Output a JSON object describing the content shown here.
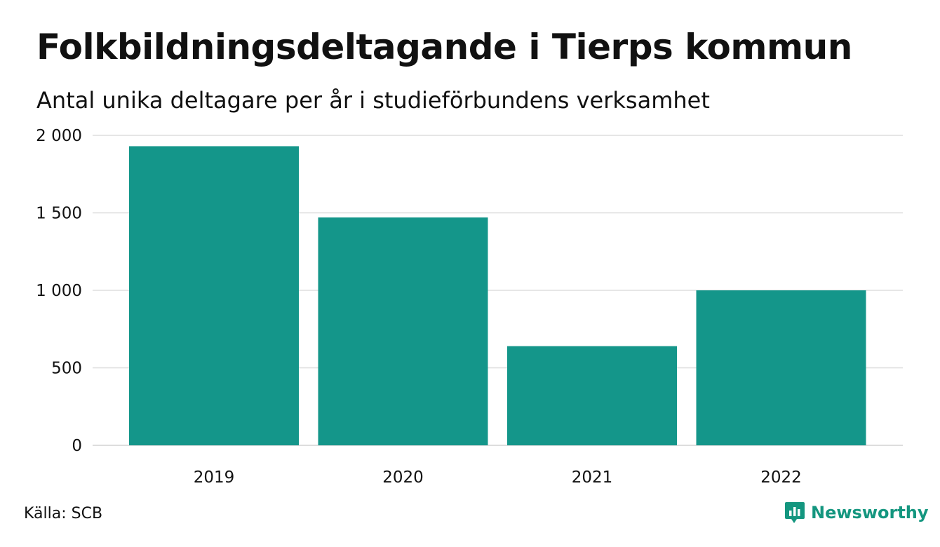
{
  "title": "Folkbildningsdeltagande i Tierps kommun",
  "subtitle": "Antal unika deltagare per år i studieförbundens verksamhet",
  "source": "Källa: SCB",
  "brand": {
    "name": "Newsworthy",
    "icon": "newsworthy-logo-icon"
  },
  "colors": {
    "bar": "#14968a",
    "grid": "#dddddd",
    "brand": "#14967f"
  },
  "chart_data": {
    "type": "bar",
    "categories": [
      "2019",
      "2020",
      "2021",
      "2022"
    ],
    "values": [
      1930,
      1470,
      640,
      1000
    ],
    "ylim": [
      0,
      2000
    ],
    "yticks": [
      0,
      500,
      1000,
      1500,
      2000
    ],
    "ytick_labels": [
      "0",
      "500",
      "1 000",
      "1 500",
      "2 000"
    ],
    "grid": true,
    "xlabel": "",
    "ylabel": ""
  }
}
